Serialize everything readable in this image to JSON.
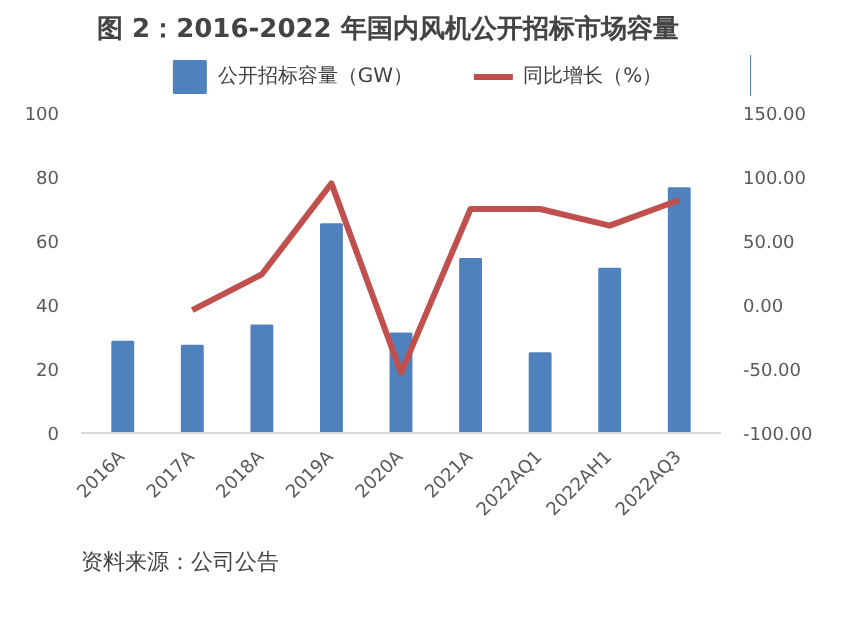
{
  "chart_data": {
    "type": "bar",
    "title": "图 2：2016-2022 年国内风机公开招标市场容量",
    "categories": [
      "2016A",
      "2017A",
      "2018A",
      "2019A",
      "2020A",
      "2021A",
      "2022AQ1",
      "2022AH1",
      "2022AQ3"
    ],
    "series": [
      {
        "name": "公开招标容量（GW）",
        "color": "#4f81bd",
        "values": [
          28.5,
          27.3,
          33.6,
          65.2,
          31.1,
          54.4,
          24.9,
          51.3,
          76.5
        ]
      },
      {
        "name": "同比增长（%）",
        "color": "#c0504d",
        "type": "line",
        "axis": "y2",
        "values": [
          null,
          -4,
          24,
          95,
          -53,
          75,
          75,
          62,
          82
        ]
      }
    ],
    "ylim": [
      0,
      100
    ],
    "yticks": [
      0,
      20,
      40,
      60,
      80,
      100
    ],
    "y2lim": [
      -100,
      150
    ],
    "y2ticks": [
      {
        "value": -100,
        "label": "-100.00"
      },
      {
        "value": -50,
        "label": "-50.00"
      },
      {
        "value": 0,
        "label": "0.00"
      },
      {
        "value": 50,
        "label": "50.00"
      },
      {
        "value": 100,
        "label": "100.00"
      },
      {
        "value": 150,
        "label": "150.00"
      }
    ],
    "grid": false,
    "legend": "top",
    "annotations": [
      "资料来源：公司公告"
    ]
  }
}
